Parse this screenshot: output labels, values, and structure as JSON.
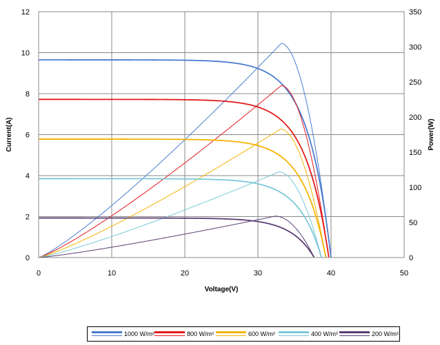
{
  "chart_data": {
    "type": "line",
    "title": "",
    "xlabel": "Voltage(V)",
    "ylabel": "Current(A)",
    "y2label": "Power(W)",
    "xlim": [
      0,
      50
    ],
    "ylim": [
      0,
      12
    ],
    "y2lim": [
      0,
      350
    ],
    "xticks": [
      "0",
      "10",
      "20",
      "30",
      "40",
      "50"
    ],
    "yticks": [
      "0",
      "2",
      "4",
      "6",
      "8",
      "10",
      "12"
    ],
    "y2ticks": [
      "0",
      "50",
      "100",
      "150",
      "200",
      "250",
      "300",
      "350"
    ],
    "grid": true,
    "legend_position": "bottom",
    "series": [
      {
        "name": "1000 W/m²",
        "color": "#4a7cd0",
        "isc": 9.65,
        "voc": 40.0,
        "vmp": 33.2,
        "pmax": 305
      },
      {
        "name": "800 W/m²",
        "color": "#e41a1c",
        "isc": 7.72,
        "voc": 39.7,
        "vmp": 33.2,
        "pmax": 245
      },
      {
        "name": "600 W/m²",
        "color": "#f5b300",
        "isc": 5.78,
        "voc": 39.3,
        "vmp": 33.1,
        "pmax": 183
      },
      {
        "name": "400 W/m²",
        "color": "#7cc8d8",
        "isc": 3.85,
        "voc": 38.7,
        "vmp": 32.9,
        "pmax": 122
      },
      {
        "name": "200 W/m²",
        "color": "#5a3c73",
        "isc": 1.93,
        "voc": 37.7,
        "vmp": 32.4,
        "pmax": 59
      }
    ]
  }
}
